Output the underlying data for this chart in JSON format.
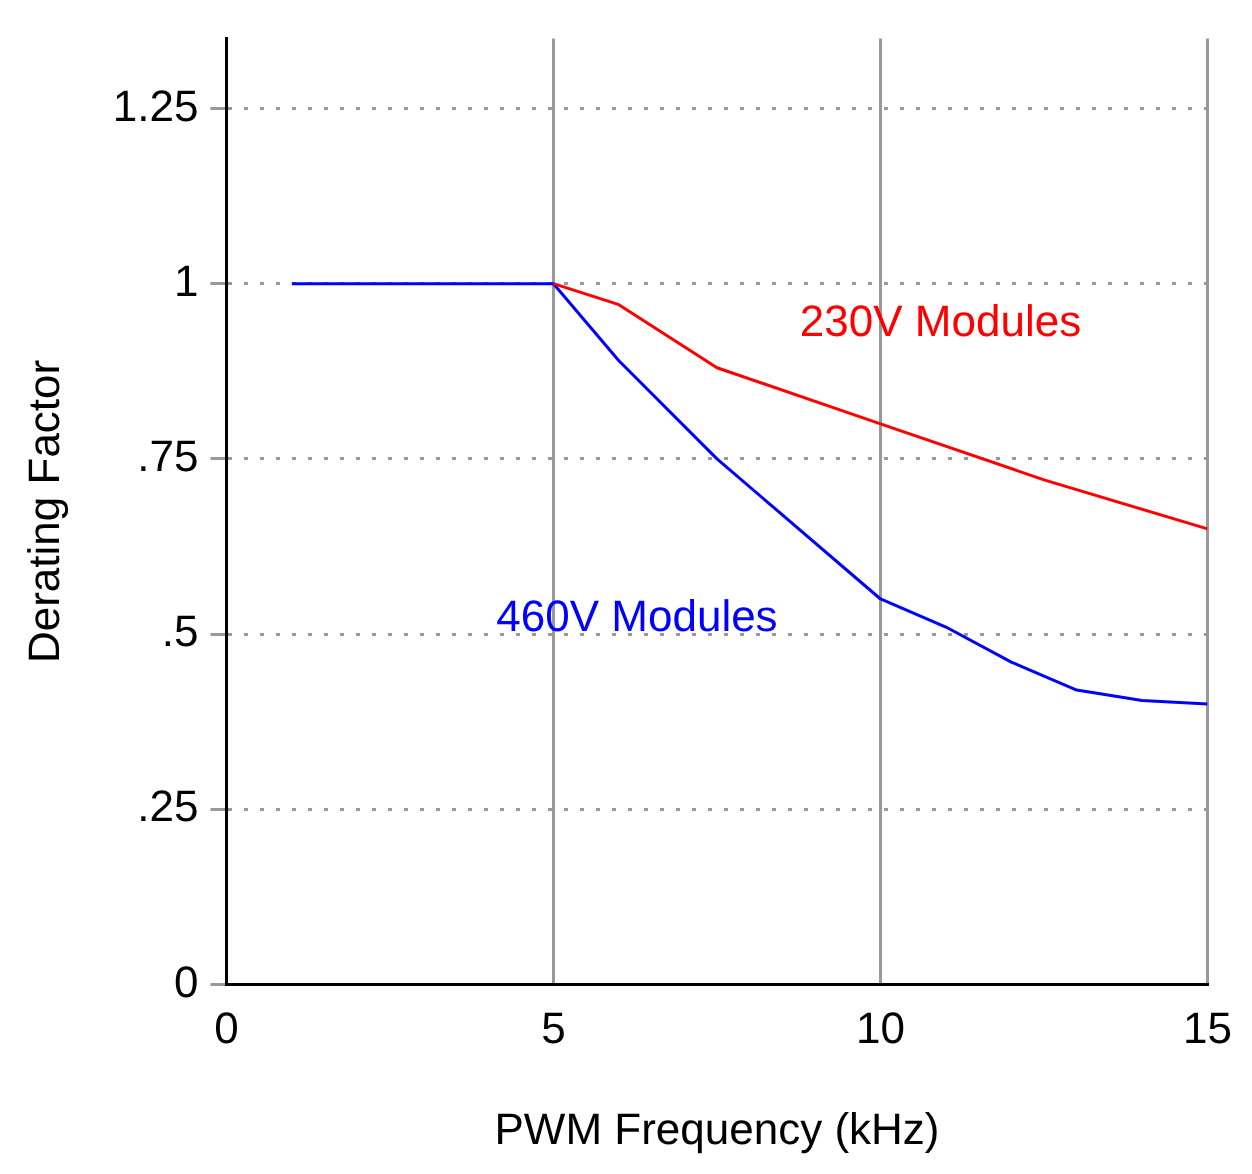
{
  "chart_data": {
    "type": "line",
    "xlabel": "PWM Frequency (kHz)",
    "ylabel": "Derating Factor",
    "xlim": [
      0,
      15
    ],
    "xticks": [
      0,
      5,
      10,
      15
    ],
    "ylim": [
      0,
      1.35
    ],
    "yticks": [
      0,
      {
        "value": 0.25,
        "label": ".25"
      },
      {
        "value": 0.5,
        "label": ".5"
      },
      {
        "value": 0.75,
        "label": ".75"
      },
      1,
      1.25
    ],
    "grid": true,
    "legend": false,
    "marker": "none",
    "line_style": "solid",
    "series": [
      {
        "name": "230V Modules",
        "color": "#ff0000",
        "x": [
          5,
          6,
          7.5,
          10,
          12.5,
          15
        ],
        "values": [
          1,
          0.97,
          0.88,
          0.8,
          0.72,
          0.65
        ]
      },
      {
        "name": "460V Modules",
        "color": "#0000ff",
        "x": [
          1,
          5,
          6,
          7.5,
          10,
          11,
          12,
          13,
          14,
          15
        ],
        "values": [
          1,
          1,
          0.89,
          0.75,
          0.55,
          0.51,
          0.46,
          0.42,
          0.405,
          0.4
        ]
      }
    ]
  }
}
